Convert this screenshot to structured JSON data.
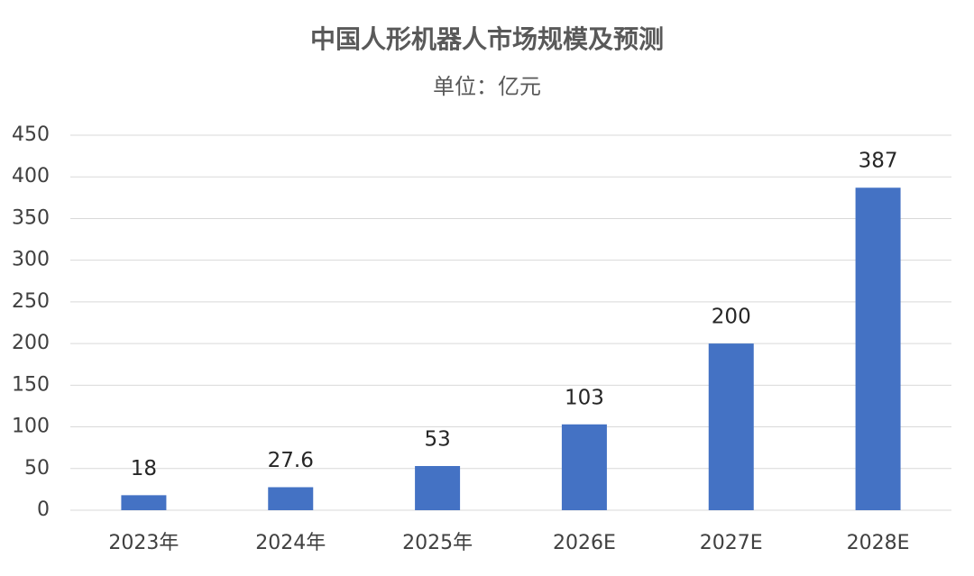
{
  "chart_data": {
    "type": "bar",
    "title": "中国人形机器人市场规模及预测",
    "subtitle": "单位：亿元",
    "categories": [
      "2023年",
      "2024年",
      "2025年",
      "2026E",
      "2027E",
      "2028E"
    ],
    "values": [
      18,
      27.6,
      53,
      103,
      200,
      387
    ],
    "color": "#4472c4",
    "ylim": [
      0,
      450
    ],
    "yticks": [
      0,
      50,
      100,
      150,
      200,
      250,
      300,
      350,
      400,
      450
    ],
    "grid": true
  }
}
